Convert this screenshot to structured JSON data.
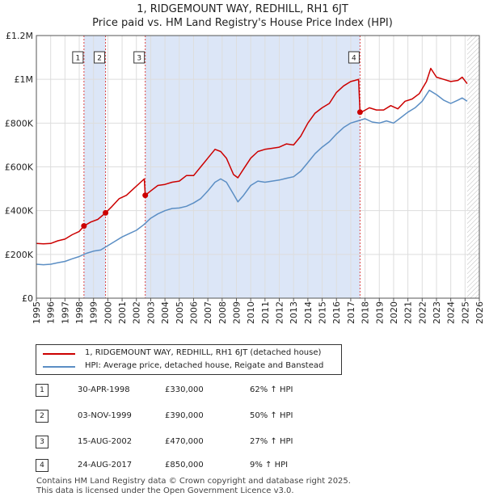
{
  "title_line1": "1, RIDGEMOUNT WAY, REDHILL, RH1 6JT",
  "title_line2": "Price paid vs. HM Land Registry's House Price Index (HPI)",
  "chart_data": {
    "type": "line",
    "title": "1, RIDGEMOUNT WAY, REDHILL, RH1 6JT — Price paid vs. HM Land Registry's House Price Index (HPI)",
    "xlim": [
      1995,
      2026
    ],
    "ylim": [
      0,
      1200000
    ],
    "ytick_values": [
      0,
      200000,
      400000,
      600000,
      800000,
      1000000,
      1200000
    ],
    "ytick_labels": [
      "£0",
      "£200K",
      "£400K",
      "£600K",
      "£800K",
      "£1M",
      "£1.2M"
    ],
    "xtick_labels": [
      "1995",
      "1996",
      "1997",
      "1998",
      "1999",
      "2000",
      "2001",
      "2002",
      "2003",
      "2004",
      "2005",
      "2006",
      "2007",
      "2008",
      "2009",
      "2010",
      "2011",
      "2012",
      "2013",
      "2014",
      "2015",
      "2016",
      "2017",
      "2018",
      "2019",
      "2020",
      "2021",
      "2022",
      "2023",
      "2024",
      "2025",
      "2026"
    ],
    "shaded_ranges": [
      [
        1998.33,
        1999.84
      ],
      [
        2002.62,
        2017.65
      ]
    ],
    "future_hatch_start": 2025.15,
    "series": [
      {
        "name": "1, RIDGEMOUNT WAY, REDHILL, RH1 6JT (detached house)",
        "color": "#cc0000",
        "points": [
          [
            1995,
            250000
          ],
          [
            1995.5,
            248000
          ],
          [
            1996,
            250000
          ],
          [
            1996.5,
            262000
          ],
          [
            1997,
            270000
          ],
          [
            1997.5,
            290000
          ],
          [
            1998,
            305000
          ],
          [
            1998.33,
            330000
          ],
          [
            1998.8,
            348000
          ],
          [
            1999.3,
            360000
          ],
          [
            1999.84,
            390000
          ],
          [
            2000.3,
            420000
          ],
          [
            2000.8,
            455000
          ],
          [
            2001.3,
            470000
          ],
          [
            2001.8,
            500000
          ],
          [
            2002.3,
            530000
          ],
          [
            2002.55,
            545000
          ],
          [
            2002.62,
            470000
          ],
          [
            2003,
            490000
          ],
          [
            2003.5,
            515000
          ],
          [
            2004,
            520000
          ],
          [
            2004.5,
            530000
          ],
          [
            2005,
            535000
          ],
          [
            2005.5,
            560000
          ],
          [
            2006,
            560000
          ],
          [
            2006.5,
            600000
          ],
          [
            2007,
            640000
          ],
          [
            2007.5,
            680000
          ],
          [
            2007.9,
            670000
          ],
          [
            2008.3,
            640000
          ],
          [
            2008.8,
            565000
          ],
          [
            2009.1,
            550000
          ],
          [
            2009.5,
            590000
          ],
          [
            2010,
            640000
          ],
          [
            2010.5,
            670000
          ],
          [
            2011,
            680000
          ],
          [
            2011.5,
            685000
          ],
          [
            2012,
            690000
          ],
          [
            2012.5,
            705000
          ],
          [
            2013,
            700000
          ],
          [
            2013.5,
            740000
          ],
          [
            2014,
            800000
          ],
          [
            2014.5,
            845000
          ],
          [
            2015,
            870000
          ],
          [
            2015.5,
            890000
          ],
          [
            2016,
            940000
          ],
          [
            2016.5,
            970000
          ],
          [
            2017,
            990000
          ],
          [
            2017.3,
            995000
          ],
          [
            2017.55,
            1000000
          ],
          [
            2017.65,
            850000
          ],
          [
            2017.9,
            855000
          ],
          [
            2018.3,
            870000
          ],
          [
            2018.8,
            860000
          ],
          [
            2019.3,
            860000
          ],
          [
            2019.8,
            880000
          ],
          [
            2020.3,
            865000
          ],
          [
            2020.8,
            900000
          ],
          [
            2021.3,
            910000
          ],
          [
            2021.8,
            935000
          ],
          [
            2022.3,
            990000
          ],
          [
            2022.6,
            1050000
          ],
          [
            2023,
            1010000
          ],
          [
            2023.5,
            1000000
          ],
          [
            2024,
            990000
          ],
          [
            2024.5,
            995000
          ],
          [
            2024.8,
            1010000
          ],
          [
            2025.15,
            980000
          ]
        ]
      },
      {
        "name": "HPI: Average price, detached house, Reigate and Banstead",
        "color": "#5b8ec4",
        "points": [
          [
            1995,
            155000
          ],
          [
            1995.5,
            153000
          ],
          [
            1996,
            155000
          ],
          [
            1996.5,
            162000
          ],
          [
            1997,
            168000
          ],
          [
            1997.5,
            180000
          ],
          [
            1998,
            190000
          ],
          [
            1998.5,
            205000
          ],
          [
            1999,
            215000
          ],
          [
            1999.5,
            220000
          ],
          [
            2000,
            240000
          ],
          [
            2000.5,
            260000
          ],
          [
            2001,
            280000
          ],
          [
            2001.5,
            295000
          ],
          [
            2002,
            310000
          ],
          [
            2002.5,
            335000
          ],
          [
            2003,
            365000
          ],
          [
            2003.5,
            385000
          ],
          [
            2004,
            400000
          ],
          [
            2004.5,
            410000
          ],
          [
            2005,
            412000
          ],
          [
            2005.5,
            420000
          ],
          [
            2006,
            435000
          ],
          [
            2006.5,
            455000
          ],
          [
            2007,
            490000
          ],
          [
            2007.5,
            530000
          ],
          [
            2007.9,
            545000
          ],
          [
            2008.3,
            530000
          ],
          [
            2008.8,
            475000
          ],
          [
            2009.1,
            440000
          ],
          [
            2009.5,
            470000
          ],
          [
            2010,
            515000
          ],
          [
            2010.5,
            535000
          ],
          [
            2011,
            530000
          ],
          [
            2011.5,
            535000
          ],
          [
            2012,
            540000
          ],
          [
            2012.5,
            548000
          ],
          [
            2013,
            555000
          ],
          [
            2013.5,
            580000
          ],
          [
            2014,
            620000
          ],
          [
            2014.5,
            660000
          ],
          [
            2015,
            690000
          ],
          [
            2015.5,
            715000
          ],
          [
            2016,
            750000
          ],
          [
            2016.5,
            780000
          ],
          [
            2017,
            800000
          ],
          [
            2017.5,
            810000
          ],
          [
            2018,
            820000
          ],
          [
            2018.5,
            805000
          ],
          [
            2019,
            800000
          ],
          [
            2019.5,
            810000
          ],
          [
            2020,
            800000
          ],
          [
            2020.5,
            825000
          ],
          [
            2021,
            850000
          ],
          [
            2021.5,
            870000
          ],
          [
            2022,
            900000
          ],
          [
            2022.5,
            950000
          ],
          [
            2023,
            930000
          ],
          [
            2023.5,
            905000
          ],
          [
            2024,
            890000
          ],
          [
            2024.5,
            905000
          ],
          [
            2024.8,
            915000
          ],
          [
            2025.15,
            900000
          ]
        ]
      }
    ],
    "sales": [
      {
        "label": "1",
        "x": 1998.33,
        "price": 330000
      },
      {
        "label": "2",
        "x": 1999.84,
        "price": 390000
      },
      {
        "label": "3",
        "x": 2002.62,
        "price": 470000
      },
      {
        "label": "4",
        "x": 2017.65,
        "price": 850000
      }
    ]
  },
  "legend": {
    "property_label": "1, RIDGEMOUNT WAY, REDHILL, RH1 6JT (detached house)",
    "hpi_label": "HPI: Average price, detached house, Reigate and Banstead"
  },
  "transactions": [
    {
      "num": "1",
      "date": "30-APR-1998",
      "price": "£330,000",
      "hpi": "62% ↑ HPI"
    },
    {
      "num": "2",
      "date": "03-NOV-1999",
      "price": "£390,000",
      "hpi": "50% ↑ HPI"
    },
    {
      "num": "3",
      "date": "15-AUG-2002",
      "price": "£470,000",
      "hpi": "27% ↑ HPI"
    },
    {
      "num": "4",
      "date": "24-AUG-2017",
      "price": "£850,000",
      "hpi": "9% ↑ HPI"
    }
  ],
  "footer_line1": "Contains HM Land Registry data © Crown copyright and database right 2025.",
  "footer_line2": "This data is licensed under the Open Government Licence v3.0.",
  "colors": {
    "property": "#cc0000",
    "hpi": "#5b8ec4",
    "shade": "#dce6f7",
    "grid": "#dddddd"
  }
}
